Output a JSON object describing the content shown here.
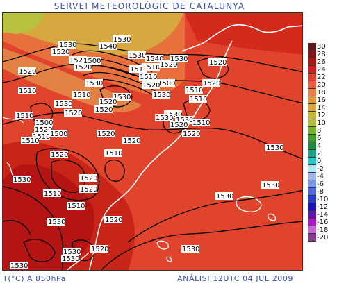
{
  "header": {
    "title": "SERVEI METEOROLÒGIC DE CATALUNYA"
  },
  "footer": {
    "variable": "T(°C) A 850hPa",
    "analysis": "ANÀLISI 12UTC 04 JUL 2009"
  },
  "legend": {
    "labels": [
      "30",
      "28",
      "26",
      "24",
      "22",
      "20",
      "18",
      "16",
      "14",
      "12",
      "10",
      "8",
      "6",
      "4",
      "2",
      "0",
      "-2",
      "-4",
      "-6",
      "-8",
      "-10",
      "-12",
      "-14",
      "-16",
      "-18",
      "-20"
    ],
    "colors": [
      "#5a1a1a",
      "#8a1414",
      "#b41414",
      "#d81c1c",
      "#e83c28",
      "#f05a3c",
      "#f07c46",
      "#e8963c",
      "#d8a83c",
      "#c8b43c",
      "#b4c03c",
      "#78b428",
      "#3c9e28",
      "#1e8c3c",
      "#1e9e82",
      "#28c8c8",
      "#b4e6f0",
      "#a0b4f0",
      "#7896f0",
      "#5064e6",
      "#283cd2",
      "#1414b4",
      "#6414b4",
      "#b414c8",
      "#c864dc",
      "#8c3c8c"
    ]
  },
  "contour_labels": [
    "1530",
    "1530",
    "1520",
    "1540",
    "1520",
    "1500",
    "1530",
    "1540",
    "1520",
    "1510",
    "1520",
    "1530",
    "1510",
    "1520",
    "1510",
    "1530",
    "1500",
    "1520",
    "1510",
    "1520",
    "1530",
    "1510",
    "1530",
    "1520",
    "1520",
    "1520",
    "1500",
    "1530",
    "1510",
    "1510",
    "1530",
    "1520",
    "1510",
    "1520",
    "1530",
    "1520",
    "1510",
    "1520",
    "1520",
    "1520",
    "1510",
    "1530",
    "1500",
    "1520",
    "1510",
    "1530",
    "1510",
    "1520",
    "1530",
    "1530",
    "1510",
    "1520",
    "1510",
    "1530",
    "1520",
    "1530",
    "1530",
    "1530",
    "1530",
    "1520",
    "1530"
  ]
}
